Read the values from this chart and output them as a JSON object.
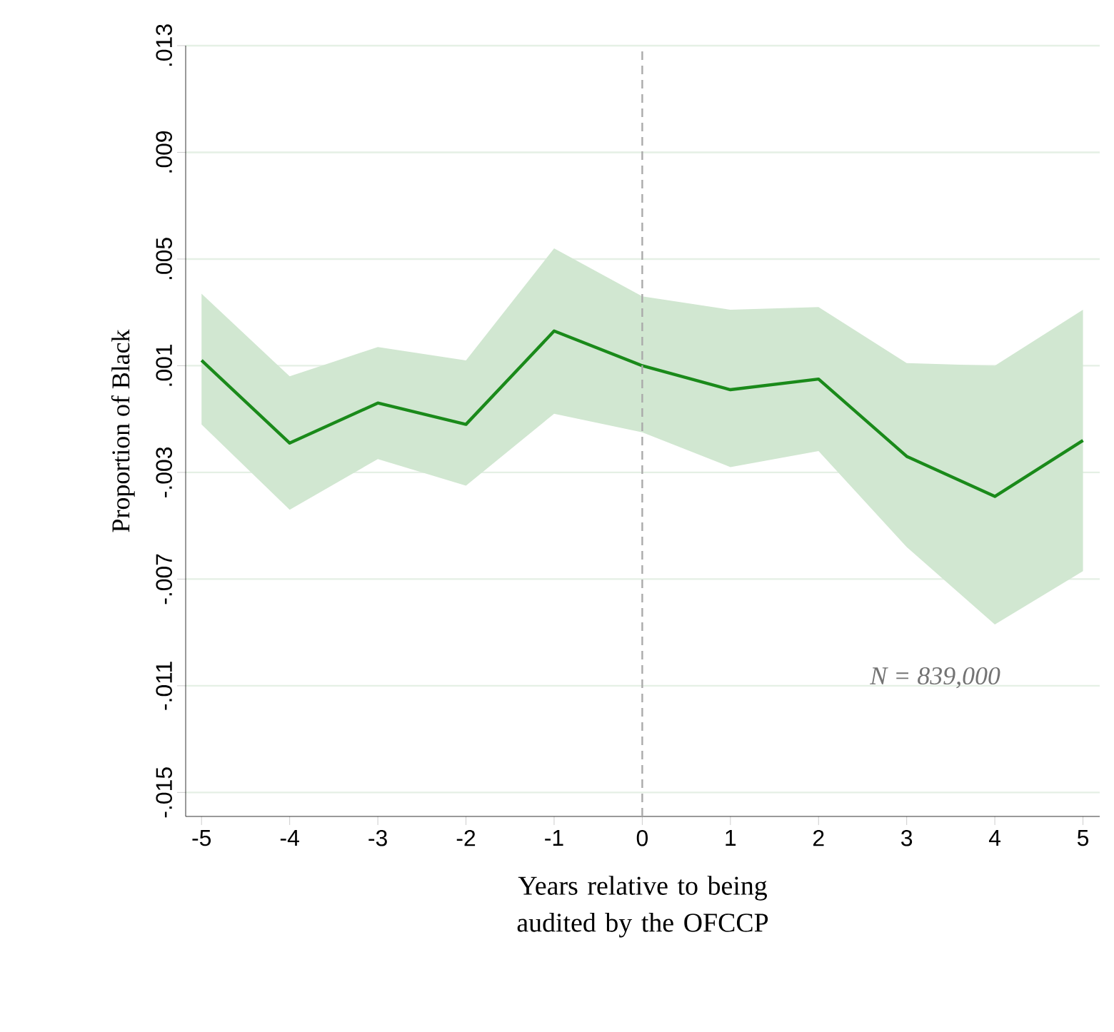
{
  "chart_data": {
    "type": "line",
    "xlabel": "Years relative to being audited by the OFCCP",
    "ylabel": "Proportion of Black",
    "x": [
      -5,
      -4,
      -3,
      -2,
      -1,
      0,
      1,
      2,
      3,
      4,
      5
    ],
    "series": [
      {
        "color": "#1a8a1a",
        "values": [
          0.0012,
          -0.0019,
          -0.0004,
          -0.0012,
          0.0023,
          0.001,
          0.0001,
          0.0005,
          -0.0024,
          -0.0039,
          -0.0018
        ],
        "upper": [
          0.0037,
          0.0006,
          0.0017,
          0.0012,
          0.0054,
          0.0036,
          0.0031,
          0.0032,
          0.0011,
          0.001,
          0.0031
        ],
        "lower": [
          -0.0012,
          -0.0044,
          -0.0025,
          -0.0035,
          -0.0008,
          -0.0015,
          -0.0028,
          -0.0022,
          -0.0058,
          -0.0087,
          -0.0067
        ]
      }
    ],
    "xlim": [
      -5.18,
      5.19
    ],
    "ylim": [
      -0.0159,
      0.013
    ],
    "xticks": [
      -5,
      -4,
      -3,
      -2,
      -1,
      0,
      1,
      2,
      3,
      4,
      5
    ],
    "yticks": [
      {
        "value": -0.015,
        "label": "-.015"
      },
      {
        "value": -0.011,
        "label": "-.011"
      },
      {
        "value": -0.007,
        "label": "-.007"
      },
      {
        "value": -0.003,
        "label": "-.003"
      },
      {
        "value": 0.001,
        "label": ".001"
      },
      {
        "value": 0.005,
        "label": ".005"
      },
      {
        "value": 0.009,
        "label": ".009"
      },
      {
        "value": 0.013,
        "label": ".013"
      }
    ],
    "grid": "y",
    "ref_lines": [
      {
        "axis": "x",
        "value": 0,
        "color": "#aaaaaa",
        "line_style": "dashed"
      }
    ],
    "annotations": [
      "*N = 839,000*"
    ]
  }
}
